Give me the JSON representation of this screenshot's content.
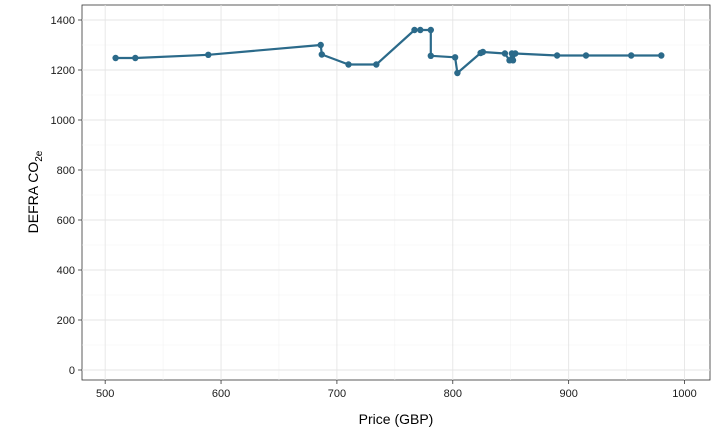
{
  "chart_data": {
    "type": "line",
    "title": "",
    "xlabel": "Price (GBP)",
    "ylabel_main": "DEFRA  CO",
    "ylabel_sub": "2e",
    "xlim": [
      480,
      1022
    ],
    "ylim": [
      -40,
      1460
    ],
    "x_ticks": [
      500,
      600,
      700,
      800,
      900,
      1000
    ],
    "y_ticks": [
      0,
      200,
      400,
      600,
      800,
      1000,
      1200,
      1400
    ],
    "grid": true,
    "line_color": "#2b6a8a",
    "series": [
      {
        "points": [
          [
            509,
            1248
          ],
          [
            526,
            1248
          ],
          [
            589,
            1261
          ],
          [
            686,
            1300
          ],
          [
            687,
            1262
          ],
          [
            710,
            1222
          ],
          [
            734,
            1222
          ],
          [
            767,
            1360
          ],
          [
            772,
            1360
          ],
          [
            781,
            1360
          ],
          [
            781,
            1257
          ],
          [
            802,
            1251
          ],
          [
            804,
            1188
          ],
          [
            824,
            1268
          ],
          [
            826,
            1272
          ],
          [
            845,
            1266
          ],
          [
            849,
            1239
          ],
          [
            851,
            1266
          ],
          [
            852,
            1239
          ],
          [
            854,
            1266
          ],
          [
            890,
            1258
          ],
          [
            915,
            1258
          ],
          [
            954,
            1258
          ],
          [
            980,
            1258
          ]
        ]
      }
    ]
  }
}
